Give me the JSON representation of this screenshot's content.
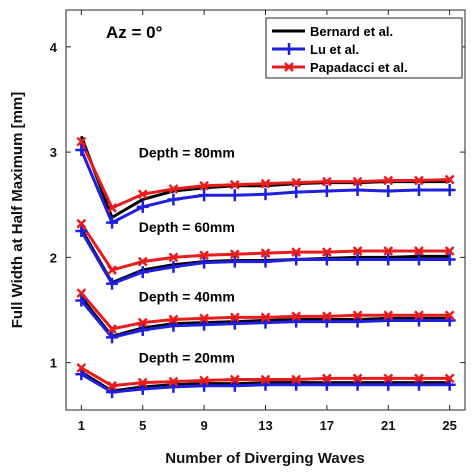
{
  "chart_data": {
    "type": "line",
    "title": "",
    "annotation_title": "Az = 0°",
    "xlabel": "Number of Diverging Waves",
    "ylabel": "Full Width at Half Maximum [mm]",
    "xlim": [
      0,
      26
    ],
    "ylim": [
      0.55,
      4.35
    ],
    "xticks": [
      1,
      5,
      9,
      13,
      17,
      21,
      25
    ],
    "yticks": [
      1,
      2,
      3,
      4
    ],
    "grid": false,
    "legend_position": "top-right",
    "x": [
      1,
      3,
      5,
      7,
      9,
      11,
      13,
      15,
      17,
      19,
      21,
      23,
      25
    ],
    "series": [
      {
        "name": "Bernard et al.",
        "color": "#000000",
        "marker": "none",
        "groups": [
          {
            "label": "Depth = 80mm",
            "values": [
              3.15,
              2.38,
              2.55,
              2.63,
              2.66,
              2.68,
              2.68,
              2.7,
              2.71,
              2.71,
              2.72,
              2.72,
              2.72
            ]
          },
          {
            "label": "Depth = 60mm",
            "values": [
              2.27,
              1.76,
              1.88,
              1.93,
              1.96,
              1.97,
              1.97,
              1.98,
              1.99,
              2.0,
              2.0,
              2.01,
              2.01
            ]
          },
          {
            "label": "Depth = 40mm",
            "values": [
              1.62,
              1.25,
              1.33,
              1.37,
              1.38,
              1.39,
              1.4,
              1.41,
              1.41,
              1.41,
              1.42,
              1.42,
              1.42
            ]
          },
          {
            "label": "Depth = 20mm",
            "values": [
              0.91,
              0.73,
              0.77,
              0.79,
              0.8,
              0.8,
              0.81,
              0.81,
              0.81,
              0.81,
              0.81,
              0.81,
              0.81
            ]
          }
        ]
      },
      {
        "name": "Lu et al.",
        "color": "#1f1fe0",
        "marker": "plus",
        "groups": [
          {
            "label": "Depth = 80mm",
            "values": [
              3.02,
              2.33,
              2.48,
              2.55,
              2.59,
              2.59,
              2.6,
              2.62,
              2.63,
              2.64,
              2.63,
              2.64,
              2.64
            ]
          },
          {
            "label": "Depth = 60mm",
            "values": [
              2.25,
              1.75,
              1.86,
              1.91,
              1.95,
              1.96,
              1.96,
              1.98,
              1.98,
              1.98,
              1.98,
              1.98,
              1.98
            ]
          },
          {
            "label": "Depth = 40mm",
            "values": [
              1.59,
              1.24,
              1.31,
              1.35,
              1.36,
              1.37,
              1.38,
              1.39,
              1.39,
              1.39,
              1.4,
              1.4,
              1.4
            ]
          },
          {
            "label": "Depth = 20mm",
            "values": [
              0.89,
              0.72,
              0.75,
              0.77,
              0.78,
              0.78,
              0.79,
              0.79,
              0.79,
              0.79,
              0.79,
              0.79,
              0.79
            ]
          }
        ]
      },
      {
        "name": "Papadacci et al.",
        "color": "#e81c1c",
        "marker": "x",
        "groups": [
          {
            "label": "Depth = 80mm",
            "values": [
              3.1,
              2.47,
              2.6,
              2.65,
              2.68,
              2.69,
              2.7,
              2.71,
              2.72,
              2.72,
              2.73,
              2.73,
              2.74
            ]
          },
          {
            "label": "Depth = 60mm",
            "values": [
              2.32,
              1.88,
              1.96,
              2.0,
              2.02,
              2.03,
              2.04,
              2.05,
              2.05,
              2.06,
              2.06,
              2.06,
              2.06
            ]
          },
          {
            "label": "Depth = 40mm",
            "values": [
              1.66,
              1.32,
              1.38,
              1.41,
              1.42,
              1.43,
              1.43,
              1.44,
              1.44,
              1.45,
              1.45,
              1.45,
              1.45
            ]
          },
          {
            "label": "Depth = 20mm",
            "values": [
              0.95,
              0.78,
              0.81,
              0.82,
              0.83,
              0.84,
              0.84,
              0.84,
              0.85,
              0.85,
              0.85,
              0.85,
              0.85
            ]
          }
        ]
      }
    ],
    "depth_labels": [
      {
        "text": "Depth = 80mm",
        "x": 5,
        "y": 2.95
      },
      {
        "text": "Depth = 60mm",
        "x": 5,
        "y": 2.24
      },
      {
        "text": "Depth = 40mm",
        "x": 5,
        "y": 1.58
      },
      {
        "text": "Depth = 20mm",
        "x": 5,
        "y": 1.0
      }
    ]
  }
}
